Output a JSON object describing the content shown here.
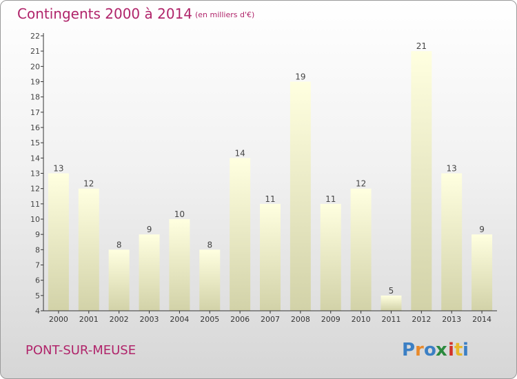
{
  "header": {
    "title": "Contingents 2000 à 2014",
    "subtitle": "(en milliers d'€)"
  },
  "footer": {
    "commune": "PONT-SUR-MEUSE",
    "logo_letters": [
      "P",
      "r",
      "o",
      "x",
      "i",
      "t",
      "i"
    ],
    "logo_colors": [
      "#3b7fc4",
      "#e8892a",
      "#3b7fc4",
      "#2b8a3e",
      "#d2332a",
      "#e8b82a",
      "#3b7fc4"
    ]
  },
  "colors": {
    "title": "#b0246a",
    "bar_top": "#ffffe0",
    "bar_bottom": "#d2d2a8",
    "axis": "#333333"
  },
  "chart_data": {
    "type": "bar",
    "title": "Contingents 2000 à 2014",
    "subtitle": "(en milliers d'€)",
    "categories": [
      "2000",
      "2001",
      "2002",
      "2003",
      "2004",
      "2005",
      "2006",
      "2007",
      "2008",
      "2009",
      "2010",
      "2011",
      "2012",
      "2013",
      "2014"
    ],
    "values": [
      13,
      12,
      8,
      9,
      10,
      8,
      14,
      11,
      19,
      11,
      12,
      5,
      21,
      13,
      9
    ],
    "ylim": [
      4,
      22
    ],
    "yticks": [
      4,
      5,
      6,
      7,
      8,
      9,
      10,
      11,
      12,
      13,
      14,
      15,
      16,
      17,
      18,
      19,
      20,
      21,
      22
    ],
    "xlabel": "",
    "ylabel": "",
    "grid": false,
    "legend": "none"
  }
}
